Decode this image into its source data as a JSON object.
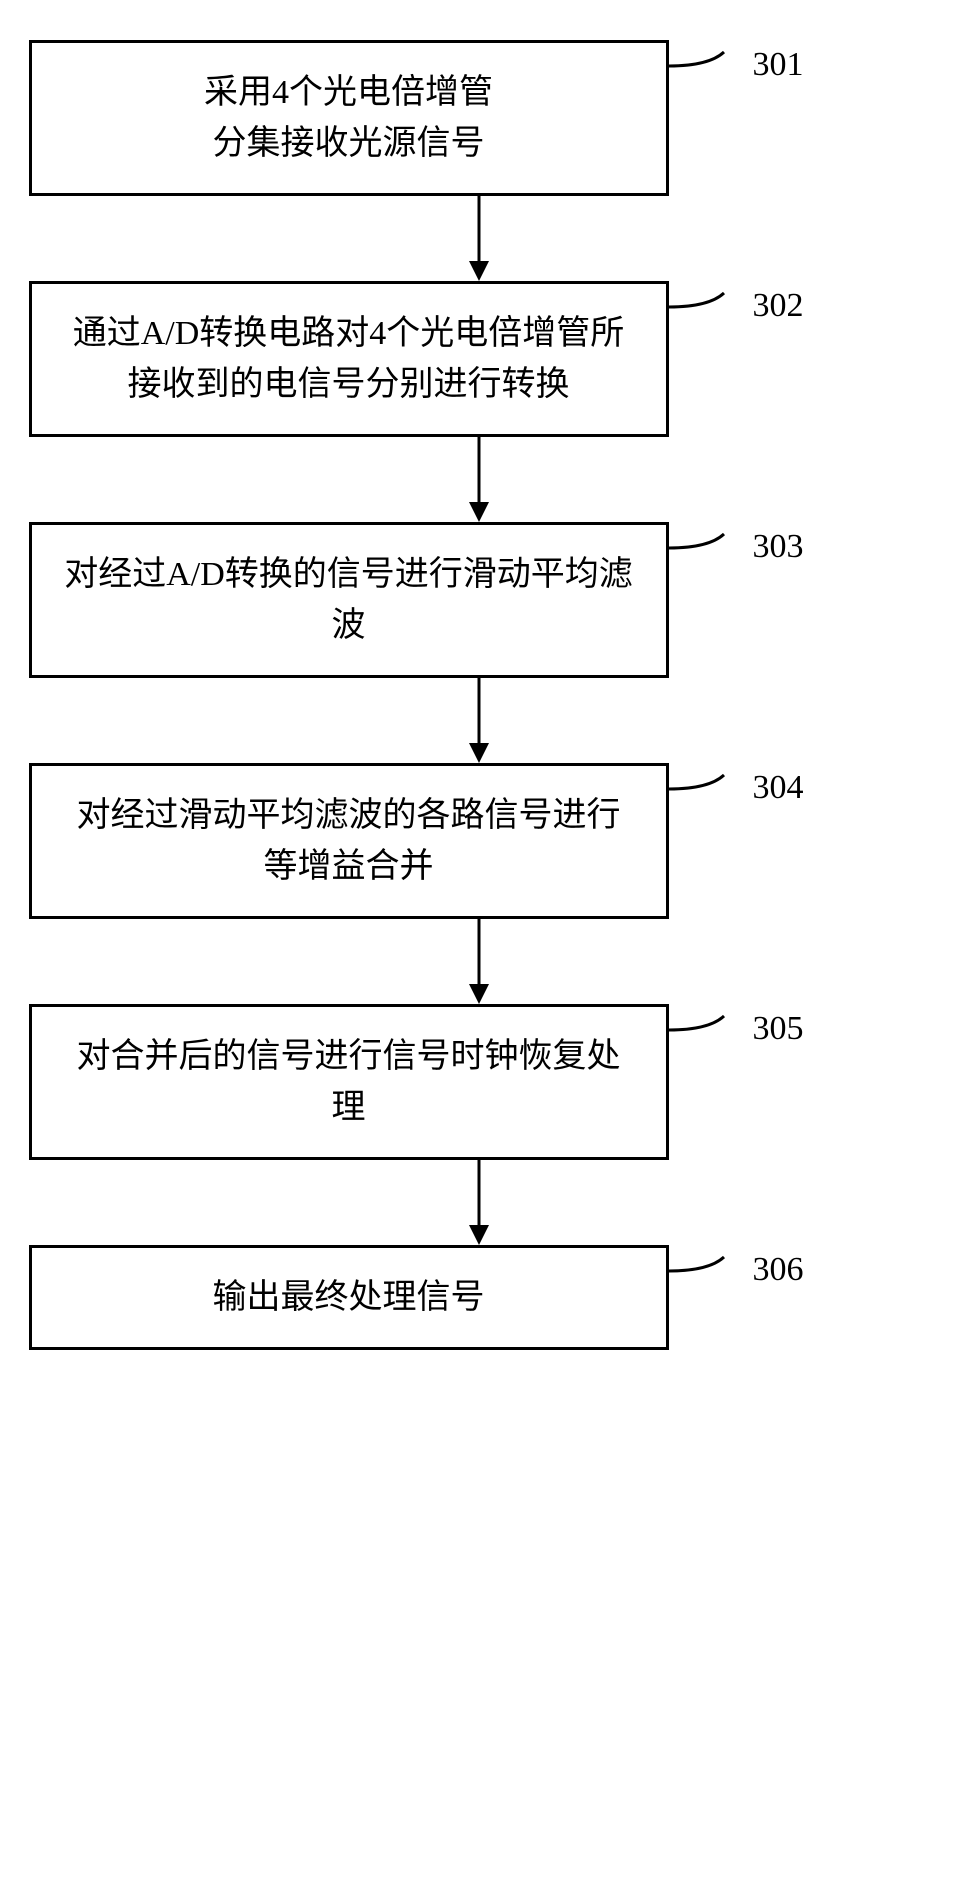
{
  "flowchart": {
    "type": "flowchart",
    "direction": "vertical",
    "node_border_color": "#000000",
    "node_border_width": 3,
    "node_background": "#ffffff",
    "node_font_size": 34,
    "node_font_family": "SimSun",
    "label_font_size": 34,
    "arrow_color": "#000000",
    "arrow_stroke_width": 3,
    "connector_stroke_width": 3,
    "nodes": [
      {
        "id": "n301",
        "text": "采用4个光电倍增管\n分集接收光源信号",
        "label": "301"
      },
      {
        "id": "n302",
        "text": "通过A/D转换电路对4个光电倍增管所接收到的电信号分别进行转换",
        "label": "302"
      },
      {
        "id": "n303",
        "text": "对经过A/D转换的信号进行滑动平均滤波",
        "label": "303"
      },
      {
        "id": "n304",
        "text": "对经过滑动平均滤波的各路信号进行等增益合并",
        "label": "304"
      },
      {
        "id": "n305",
        "text": "对合并后的信号进行信号时钟恢复处理",
        "label": "305"
      },
      {
        "id": "n306",
        "text": "输出最终处理信号",
        "label": "306"
      }
    ],
    "edges": [
      {
        "from": "n301",
        "to": "n302"
      },
      {
        "from": "n302",
        "to": "n303"
      },
      {
        "from": "n303",
        "to": "n304"
      },
      {
        "from": "n304",
        "to": "n305"
      },
      {
        "from": "n305",
        "to": "n306"
      }
    ]
  }
}
